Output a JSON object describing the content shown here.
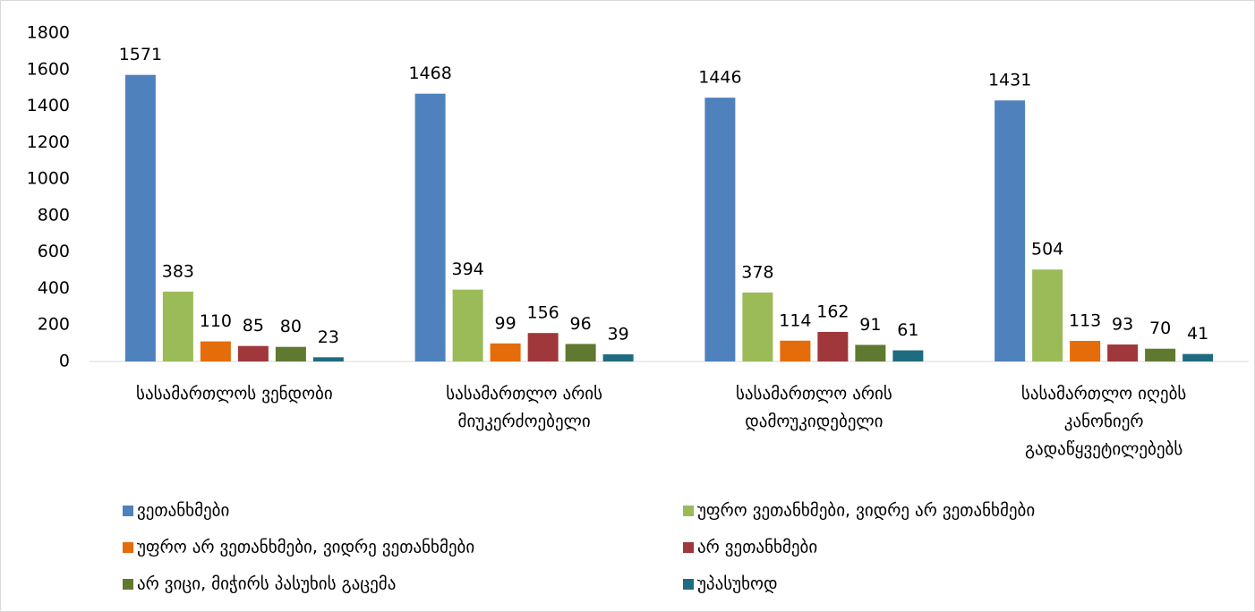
{
  "chart_data": {
    "type": "bar",
    "categories": [
      "სასამართლოს ვენდობი",
      "სასამართლო არის მიუკერძოებელი",
      "სასამართლო არის დამოუკიდებელი",
      "სასამართლო იღებს კანონიერ გადაწყვეტილებებს"
    ],
    "series": [
      {
        "name": "ვეთანხმები",
        "color": "#4f81bd",
        "values": [
          1571,
          1468,
          1446,
          1431
        ]
      },
      {
        "name": "უფრო ვეთანხმები, ვიდრე არ ვეთანხმები",
        "color": "#9bbb59",
        "values": [
          383,
          394,
          378,
          504
        ]
      },
      {
        "name": "უფრო არ ვეთანხმები, ვიდრე ვეთანხმები",
        "color": "#e46c0a",
        "values": [
          110,
          99,
          114,
          113
        ]
      },
      {
        "name": "არ ვეთანხმები",
        "color": "#a0373a",
        "values": [
          85,
          156,
          162,
          93
        ]
      },
      {
        "name": "არ ვიცი, მიჭირს პასუხის გაცემა",
        "color": "#5f7a30",
        "values": [
          80,
          96,
          91,
          70
        ]
      },
      {
        "name": "უპასუხოდ",
        "color": "#1f6b7f",
        "values": [
          23,
          39,
          61,
          41
        ]
      }
    ],
    "ylim": [
      0,
      1800
    ],
    "yticks": [
      0,
      200,
      400,
      600,
      800,
      1000,
      1200,
      1400,
      1600,
      1800
    ],
    "grid": false,
    "legend": "bottom"
  }
}
